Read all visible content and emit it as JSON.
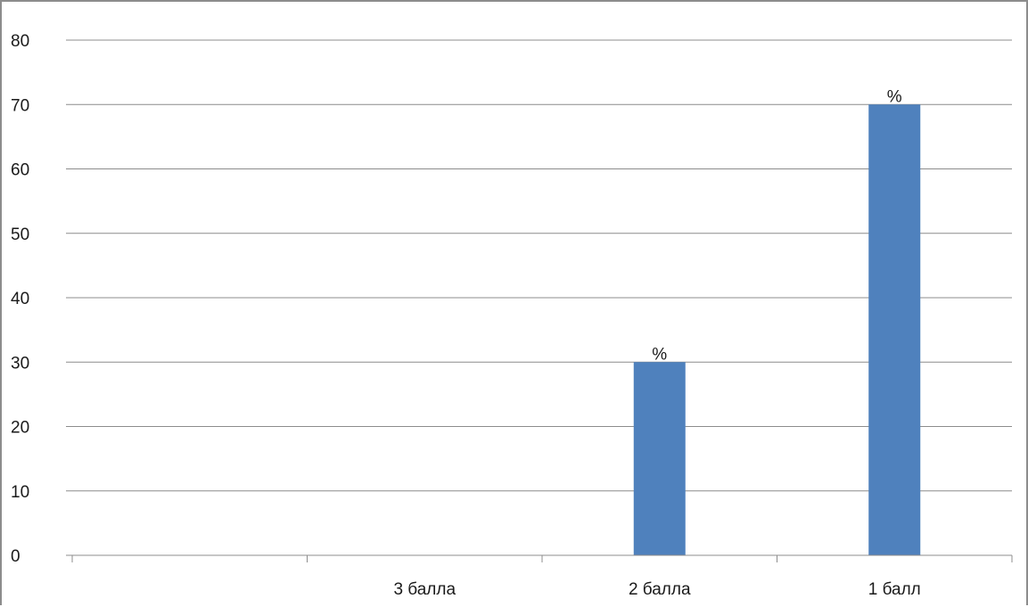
{
  "chart_data": {
    "type": "bar",
    "categories": [
      "",
      "3 балла",
      "2 балла",
      "1 балл"
    ],
    "values": [
      null,
      null,
      30,
      70
    ],
    "data_labels": [
      "",
      "",
      "%",
      "%"
    ],
    "title": "",
    "xlabel": "",
    "ylabel": "",
    "ylim": [
      0,
      80
    ],
    "yticks": [
      "0",
      "10",
      "20",
      "30",
      "40",
      "50",
      "60",
      "70",
      "80"
    ],
    "grid": true,
    "legend": "none",
    "bar_color": "#4f81bd",
    "grid_color": "#8c8c8c",
    "axis_color": "#8c8c8c"
  }
}
